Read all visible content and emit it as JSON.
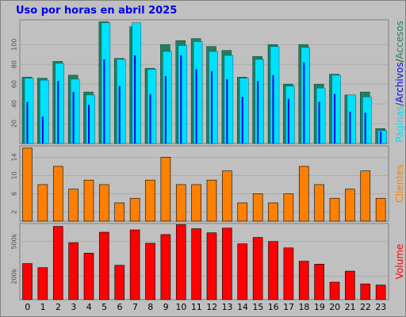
{
  "window": {
    "title": "Uso por horas en abril 2025"
  },
  "colors": {
    "background": "#c0c0c0",
    "title": "#0000ee",
    "accesos": "#1e8062",
    "archivos": "#00e0ff",
    "paginas": "#0000ee",
    "clientes": "#ff8000",
    "volume": "#ff0000"
  },
  "chart_data": [
    {
      "type": "bar",
      "categories": [
        "0",
        "1",
        "2",
        "3",
        "4",
        "5",
        "6",
        "7",
        "8",
        "9",
        "10",
        "11",
        "12",
        "13",
        "14",
        "15",
        "16",
        "17",
        "18",
        "19",
        "20",
        "21",
        "22",
        "23"
      ],
      "series": [
        {
          "name": "Accesos",
          "values": [
            67,
            66,
            83,
            69,
            52,
            123,
            86,
            118,
            76,
            100,
            104,
            106,
            98,
            94,
            67,
            88,
            100,
            60,
            100,
            60,
            70,
            49,
            52,
            15
          ]
        },
        {
          "name": "Archivos",
          "values": [
            66,
            64,
            81,
            65,
            49,
            122,
            85,
            122,
            75,
            93,
            99,
            103,
            93,
            89,
            66,
            85,
            98,
            58,
            97,
            56,
            69,
            49,
            47,
            13
          ]
        },
        {
          "name": "Paginas",
          "values": [
            42,
            27,
            63,
            52,
            39,
            85,
            58,
            89,
            50,
            68,
            89,
            75,
            73,
            65,
            47,
            63,
            69,
            45,
            82,
            42,
            50,
            32,
            31,
            12
          ]
        }
      ],
      "legend": [
        "Páginas",
        "/",
        "Archivos",
        "/",
        "Accesos"
      ],
      "yticks": [
        "20",
        "40",
        "60",
        "80",
        "100"
      ],
      "ylim": [
        0,
        125
      ]
    },
    {
      "type": "bar",
      "categories": [
        "0",
        "1",
        "2",
        "3",
        "4",
        "5",
        "6",
        "7",
        "8",
        "9",
        "10",
        "11",
        "12",
        "13",
        "14",
        "15",
        "16",
        "17",
        "18",
        "19",
        "20",
        "21",
        "22",
        "23"
      ],
      "series": [
        {
          "name": "Clientes",
          "values": [
            16,
            8,
            12,
            7,
            9,
            8,
            4,
            5,
            9,
            14,
            8,
            8,
            9,
            11,
            4,
            6,
            4,
            6,
            12,
            8,
            5,
            7,
            11,
            5
          ]
        }
      ],
      "yticks": [
        "2",
        "6",
        "10",
        "14"
      ],
      "ylim": [
        0,
        16.5
      ]
    },
    {
      "type": "bar",
      "categories": [
        "0",
        "1",
        "2",
        "3",
        "4",
        "5",
        "6",
        "7",
        "8",
        "9",
        "10",
        "11",
        "12",
        "13",
        "14",
        "15",
        "16",
        "17",
        "18",
        "19",
        "20",
        "21",
        "22",
        "23"
      ],
      "series": [
        {
          "name": "Volume",
          "values": [
            310000,
            275000,
            630000,
            490000,
            400000,
            580000,
            295000,
            600000,
            485000,
            560000,
            645000,
            610000,
            575000,
            615000,
            480000,
            535000,
            500000,
            445000,
            330000,
            305000,
            150000,
            245000,
            135000,
            125000
          ]
        }
      ],
      "yticks": [
        "200k",
        "500k"
      ],
      "ylim": [
        0,
        655000
      ]
    }
  ]
}
